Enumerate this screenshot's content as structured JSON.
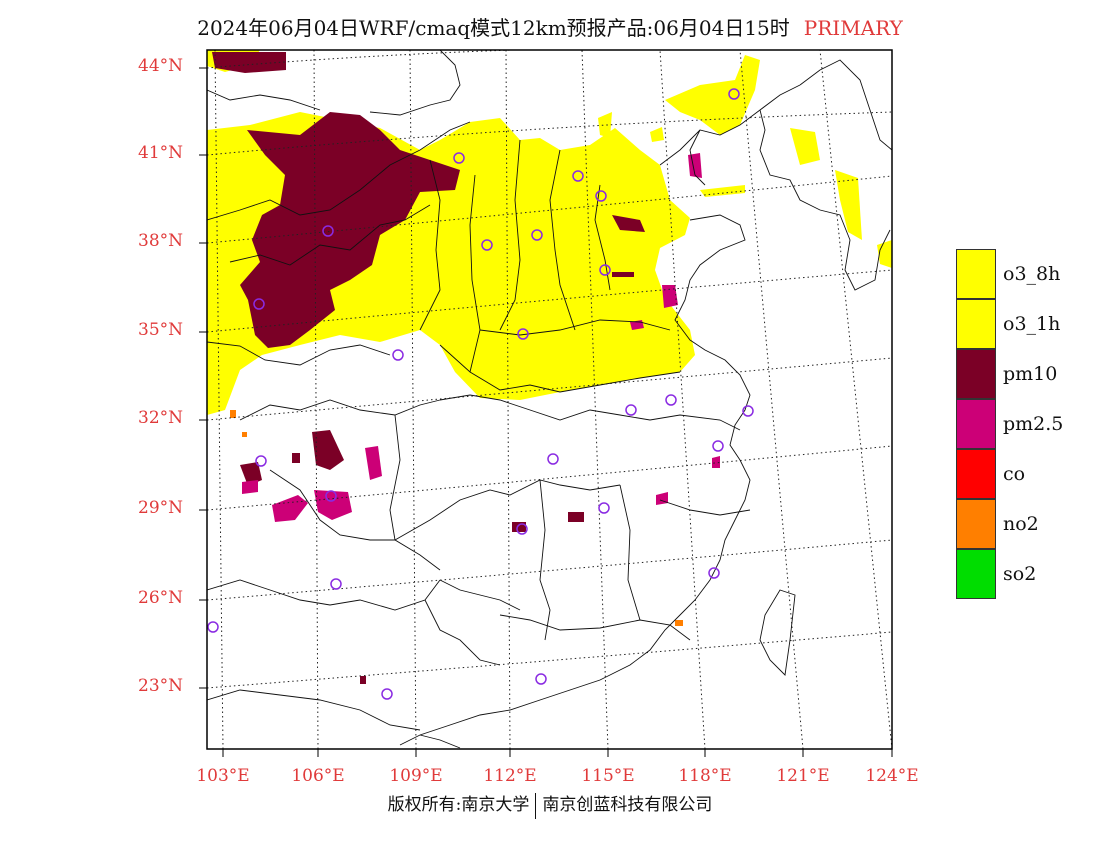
{
  "title": {
    "main": "2024年06月04日WRF/cmaq模式12km预报产品:06月04日15时",
    "tag": "PRIMARY"
  },
  "axes": {
    "lat_labels": [
      "44°N",
      "41°N",
      "38°N",
      "35°N",
      "32°N",
      "29°N",
      "26°N",
      "23°N"
    ],
    "lon_labels": [
      "103°E",
      "106°E",
      "109°E",
      "112°E",
      "115°E",
      "118°E",
      "121°E",
      "124°E"
    ]
  },
  "legend": [
    {
      "label": "o3_8h",
      "color": "#ffff00"
    },
    {
      "label": "o3_1h",
      "color": "#ffff00"
    },
    {
      "label": "pm10",
      "color": "#7b0026"
    },
    {
      "label": "pm2.5",
      "color": "#cc0077"
    },
    {
      "label": "co",
      "color": "#ff0000"
    },
    {
      "label": "no2",
      "color": "#ff7f00"
    },
    {
      "label": "so2",
      "color": "#00dd00"
    }
  ],
  "footer": {
    "left": "版权所有:南京大学",
    "right": "南京创蓝科技有限公司"
  },
  "colors": {
    "yellow": "#ffff00",
    "maroon": "#7b0026",
    "magenta": "#cc0077",
    "orange": "#ff7f00",
    "station": "#8a2be2",
    "label_red": "#e03a3a"
  },
  "stations_count_shown": 28
}
